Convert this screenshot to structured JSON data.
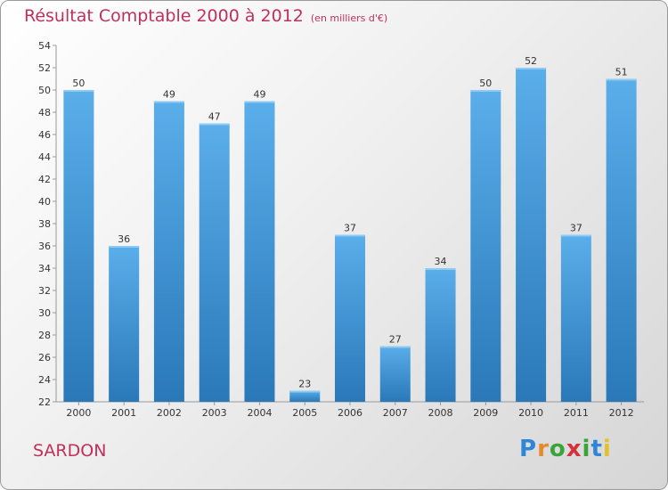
{
  "chart_data": {
    "type": "bar",
    "title": "Résultat Comptable 2000 à 2012",
    "subtitle": "(en milliers d'€)",
    "categories": [
      "2000",
      "2001",
      "2002",
      "2003",
      "2004",
      "2005",
      "2006",
      "2007",
      "2008",
      "2009",
      "2010",
      "2011",
      "2012"
    ],
    "values": [
      50,
      36,
      49,
      47,
      49,
      23,
      37,
      27,
      34,
      50,
      52,
      37,
      51
    ],
    "ylim": [
      22,
      54
    ],
    "yticks": [
      22,
      24,
      26,
      28,
      30,
      32,
      34,
      36,
      38,
      40,
      42,
      44,
      46,
      48,
      50,
      52,
      54
    ],
    "grid": false,
    "bar_color": "#4a9fe0"
  },
  "place_label": "SARDON",
  "brand": {
    "letters": [
      "P",
      "r",
      "o",
      "x",
      "i",
      "t",
      "i"
    ],
    "colors": [
      "#2f86d6",
      "#e4892c",
      "#3aa33a",
      "#d6303a",
      "#3aa33a",
      "#2f86d6",
      "#e4c02c"
    ]
  }
}
